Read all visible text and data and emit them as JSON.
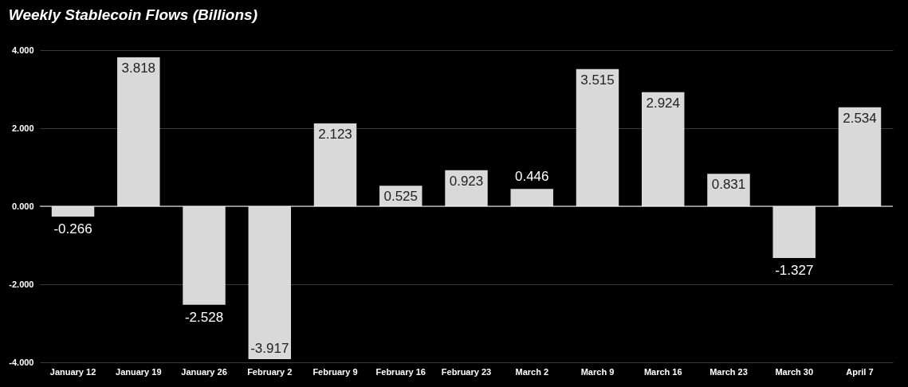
{
  "chart_data": {
    "type": "bar",
    "title": "Weekly Stablecoin Flows (Billions)",
    "categories": [
      "January 12",
      "January 19",
      "January 26",
      "February 2",
      "February 9",
      "February 16",
      "February 23",
      "March 2",
      "March 9",
      "March 16",
      "March 23",
      "March 30",
      "April 7"
    ],
    "values": [
      -0.266,
      3.818,
      -2.528,
      -3.917,
      2.123,
      0.525,
      0.923,
      0.446,
      3.515,
      2.924,
      0.831,
      -1.327,
      2.534
    ],
    "color": "#d9d9d9",
    "data_labels": true,
    "ylim": [
      -4,
      4
    ],
    "yticks": [
      {
        "value": -4,
        "label": "-4.000"
      },
      {
        "value": -2,
        "label": "-2.000"
      },
      {
        "value": 0,
        "label": "0.000"
      },
      {
        "value": 2,
        "label": "2.000"
      },
      {
        "value": 4,
        "label": "4.000"
      }
    ],
    "grid": "y"
  }
}
